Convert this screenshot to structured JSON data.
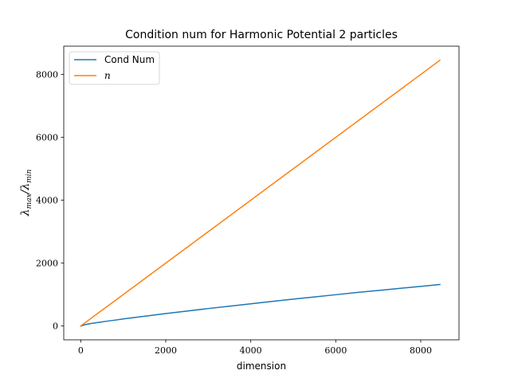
{
  "chart_data": {
    "type": "line",
    "title": "Condition num for Harmonic Potential 2 particles",
    "xlabel": "dimension",
    "ylabel": {
      "base1": "λ",
      "sub1": "max",
      "slash": "/",
      "base2": "λ",
      "sub2": "min"
    },
    "xlim": [
      -400,
      8900
    ],
    "ylim": [
      -440,
      8900
    ],
    "xticks": [
      0,
      2000,
      4000,
      6000,
      8000
    ],
    "yticks": [
      0,
      2000,
      4000,
      6000,
      8000
    ],
    "grid": false,
    "legend_position": "top-left",
    "series": [
      {
        "name": "Cond Num",
        "color": "#1f77b4",
        "x": [
          0,
          50,
          100,
          200,
          400,
          600,
          800,
          1000,
          1500,
          2000,
          2500,
          3000,
          3500,
          4000,
          4500,
          5000,
          5500,
          6000,
          6500,
          7000,
          7500,
          8000,
          8450
        ],
        "y": [
          0,
          22,
          40,
          70,
          110,
          150,
          185,
          225,
          310,
          395,
          475,
          555,
          630,
          705,
          780,
          855,
          925,
          995,
          1065,
          1130,
          1195,
          1260,
          1320
        ]
      },
      {
        "name": "n",
        "color": "#ff7f0e",
        "x": [
          0,
          8450
        ],
        "y": [
          0,
          8450
        ]
      }
    ]
  }
}
